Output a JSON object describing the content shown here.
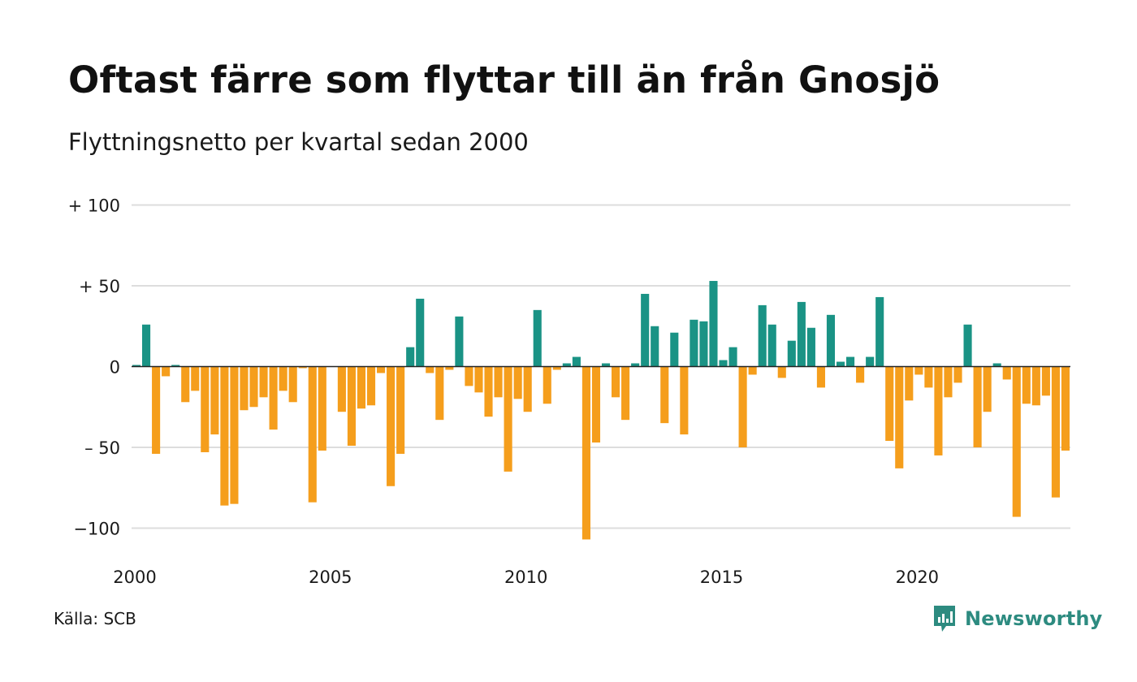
{
  "title": "Oftast färre som flyttar till än från Gnosjö",
  "subtitle": "Flyttningsnetto per kvartal sedan 2000",
  "source": "Källa: SCB",
  "brand": {
    "name": "Newsworthy",
    "icon": "newsworthy-logo-icon",
    "color": "#2d8b80"
  },
  "colors": {
    "positive": "#1a9385",
    "negative": "#f59e1c",
    "grid": "#dddddd",
    "zero_line": "#222222"
  },
  "chart_data": {
    "type": "bar",
    "title": "Oftast färre som flyttar till än från Gnosjö",
    "subtitle": "Flyttningsnetto per kvartal sedan 2000",
    "ylim": [
      -107,
      100
    ],
    "yticks": [
      {
        "value": 100,
        "label": "+ 100"
      },
      {
        "value": 50,
        "label": "+  50"
      },
      {
        "value": 0,
        "label": "0"
      },
      {
        "value": -50,
        "label": "– 50"
      },
      {
        "value": -100,
        "label": "−100"
      }
    ],
    "xticks": [
      "2000",
      "2005",
      "2010",
      "2015",
      "2020"
    ],
    "grid": true,
    "start_year": 2000,
    "values": [
      1,
      26,
      -54,
      -6,
      1,
      -22,
      -15,
      -53,
      -42,
      -86,
      -85,
      -27,
      -25,
      -19,
      -39,
      -15,
      -22,
      -1,
      -84,
      -52,
      0,
      -28,
      -49,
      -26,
      -24,
      -4,
      -74,
      -54,
      12,
      42,
      -4,
      -33,
      -2,
      31,
      -12,
      -16,
      -31,
      -19,
      -65,
      -20,
      -28,
      35,
      -23,
      -2,
      2,
      6,
      -107,
      -47,
      2,
      -19,
      -33,
      2,
      45,
      25,
      -35,
      21,
      -42,
      29,
      28,
      53,
      4,
      12,
      -50,
      -5,
      38,
      26,
      -7,
      16,
      40,
      24,
      -13,
      32,
      3,
      6,
      -10,
      6,
      43,
      -46,
      -63,
      -21,
      -5,
      -13,
      -55,
      -19,
      -10,
      26,
      -50,
      -28,
      2,
      -8,
      -93,
      -23,
      -24,
      -18,
      -81,
      -52
    ]
  }
}
